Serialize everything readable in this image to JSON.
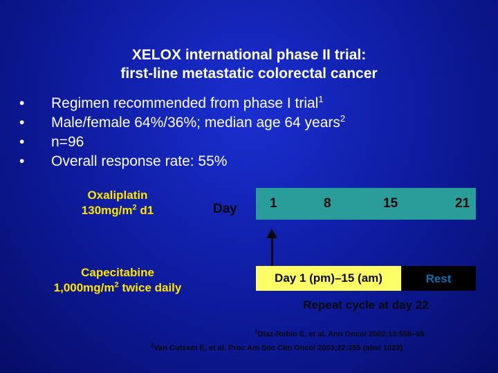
{
  "title": {
    "line1": "XELOX international phase II trial:",
    "line2": "first-line metastatic colorectal cancer"
  },
  "bullets": [
    {
      "text": "Regimen recommended from phase I trial",
      "sup": "1"
    },
    {
      "text": "Male/female 64%/36%; median age 64 years",
      "sup": "2"
    },
    {
      "text": "n=96",
      "sup": ""
    },
    {
      "text": "Overall response rate: 55%",
      "sup": ""
    }
  ],
  "bullet_symbol": "•",
  "oxaliplatin": {
    "line1": "Oxaliplatin",
    "line2_a": "130mg/m",
    "line2_sup": "2",
    "line2_b": " d1"
  },
  "capecitabine": {
    "line1": "Capecitabine",
    "line2_a": "1,000mg/m",
    "line2_sup": "2",
    "line2_b": " twice daily"
  },
  "schedule": {
    "day_label": "Day",
    "ticks": [
      "1",
      "8",
      "15",
      "21"
    ],
    "dosing_label": "Day 1 (pm)–15 (am)",
    "rest_label": "Rest",
    "repeat_label": "Repeat cycle at day 22"
  },
  "references": [
    {
      "sup": "1",
      "text": "Díaz-Rubio E, et al. Ann Oncol 2002;13:558–65"
    },
    {
      "sup": "2",
      "text": "Van Cutsem E, et al. Proc Am Soc Clin Oncol 2003;22:255 (abst 1023)"
    }
  ],
  "colors": {
    "background": "#0d1a9a",
    "drug_text": "#ffe600",
    "timeline_bar": "#2a9d9a",
    "dosing_box": "#ffff66",
    "rest_box": "#000000",
    "rest_text": "#0d6fa8"
  }
}
